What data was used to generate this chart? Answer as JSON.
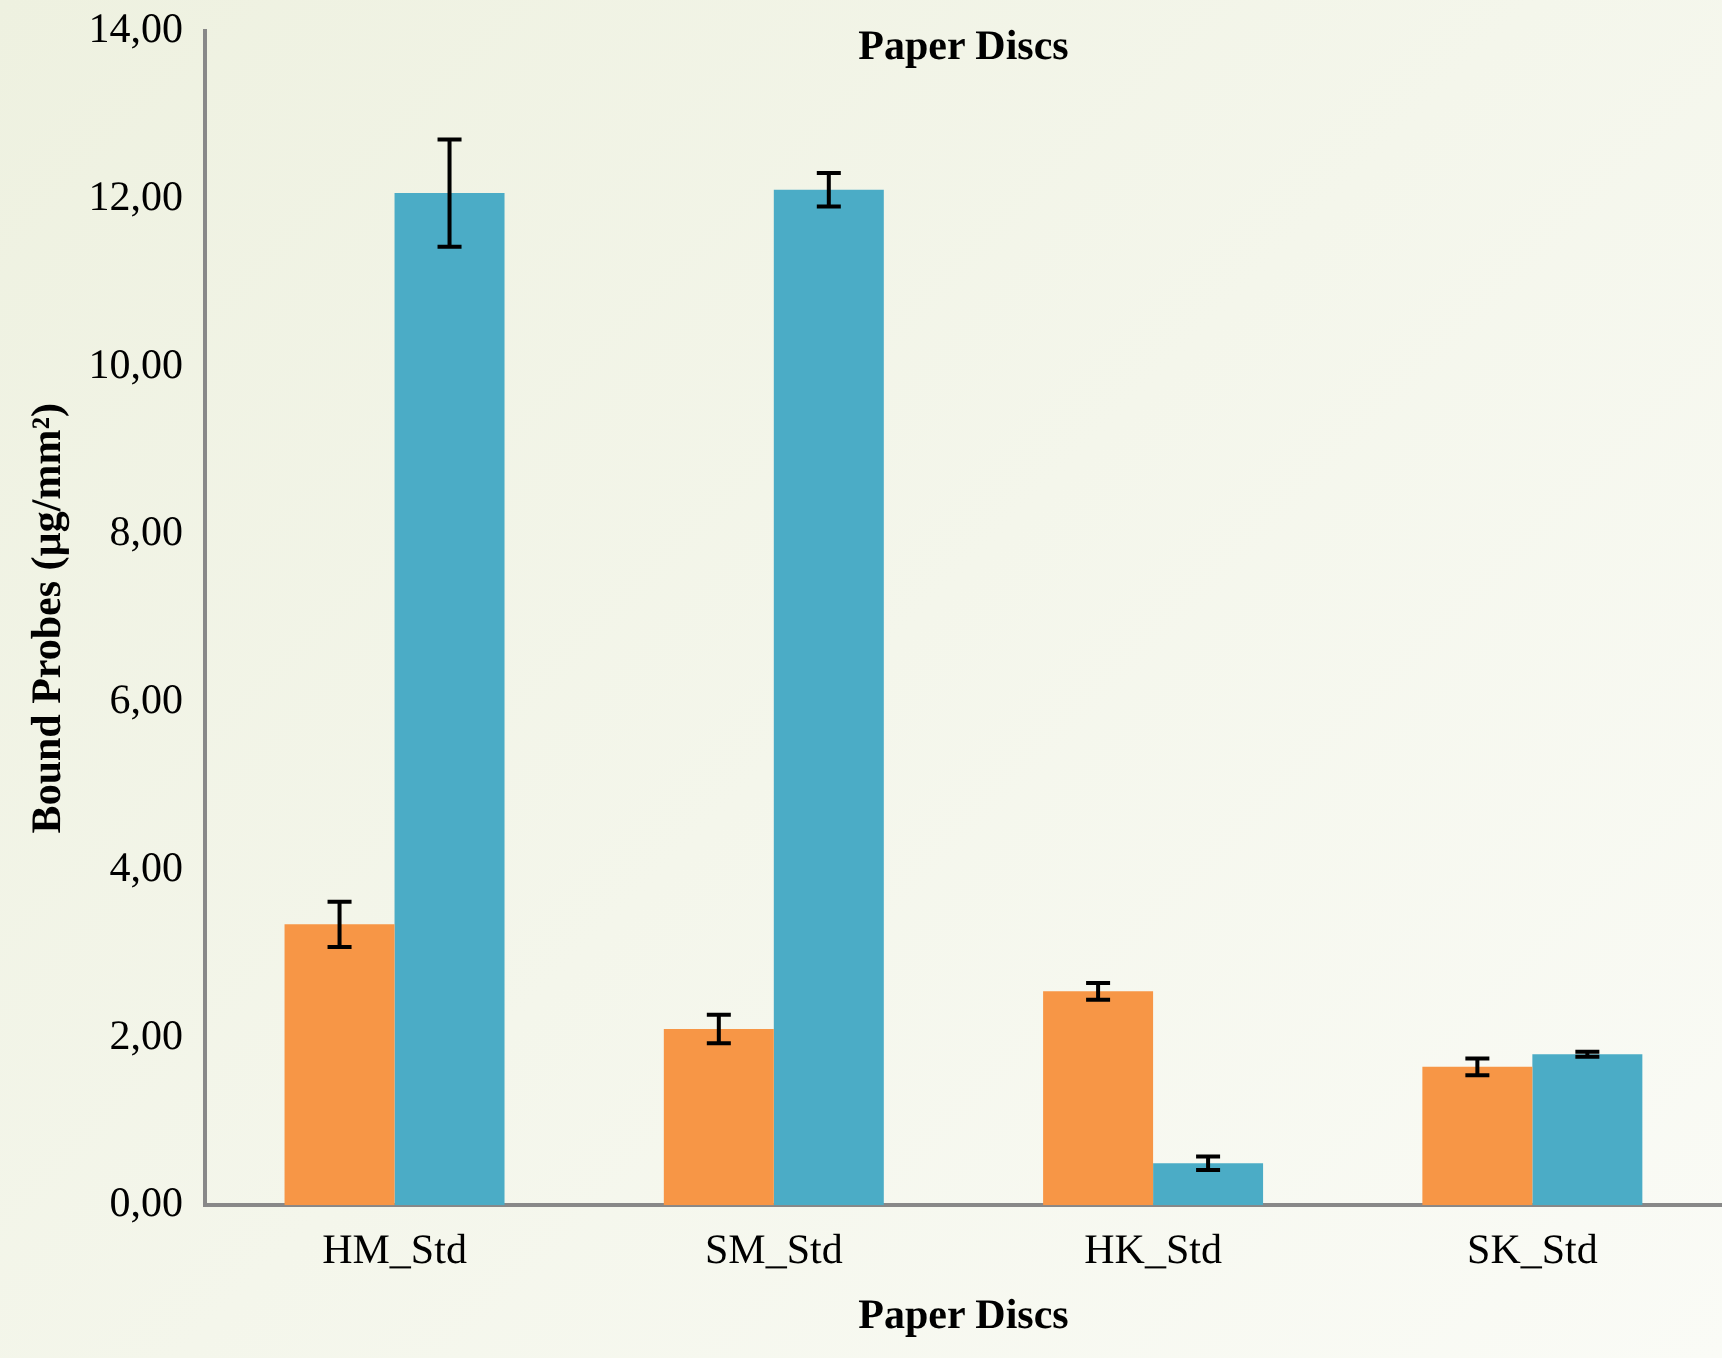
{
  "chart_data": {
    "type": "bar",
    "xlabel": "Paper Discs",
    "ylabel": "Bound Probes (µg/mm²)",
    "annotations": [
      "Paper Discs"
    ],
    "categories": [
      "HM_Std",
      "SM_Std",
      "HK_Std",
      "SK_Std"
    ],
    "series": [
      {
        "color": "#f79646",
        "values": [
          3.35,
          2.1,
          2.55,
          1.65
        ],
        "errors": [
          0.27,
          0.17,
          0.1,
          0.1
        ]
      },
      {
        "color": "#4bacc6",
        "values": [
          12.07,
          12.11,
          0.5,
          1.8
        ],
        "errors": [
          0.64,
          0.2,
          0.08,
          0.03
        ]
      }
    ],
    "ylim": [
      0,
      14
    ],
    "yticks": [
      {
        "value": 0,
        "label": "0,00"
      },
      {
        "value": 2,
        "label": "2,00"
      },
      {
        "value": 4,
        "label": "4,00"
      },
      {
        "value": 6,
        "label": "6,00"
      },
      {
        "value": 8,
        "label": "8,00"
      },
      {
        "value": 10,
        "label": "10,00"
      },
      {
        "value": 12,
        "label": "12,00"
      },
      {
        "value": 14,
        "label": "14,00"
      }
    ],
    "grid": false,
    "legend": false
  }
}
